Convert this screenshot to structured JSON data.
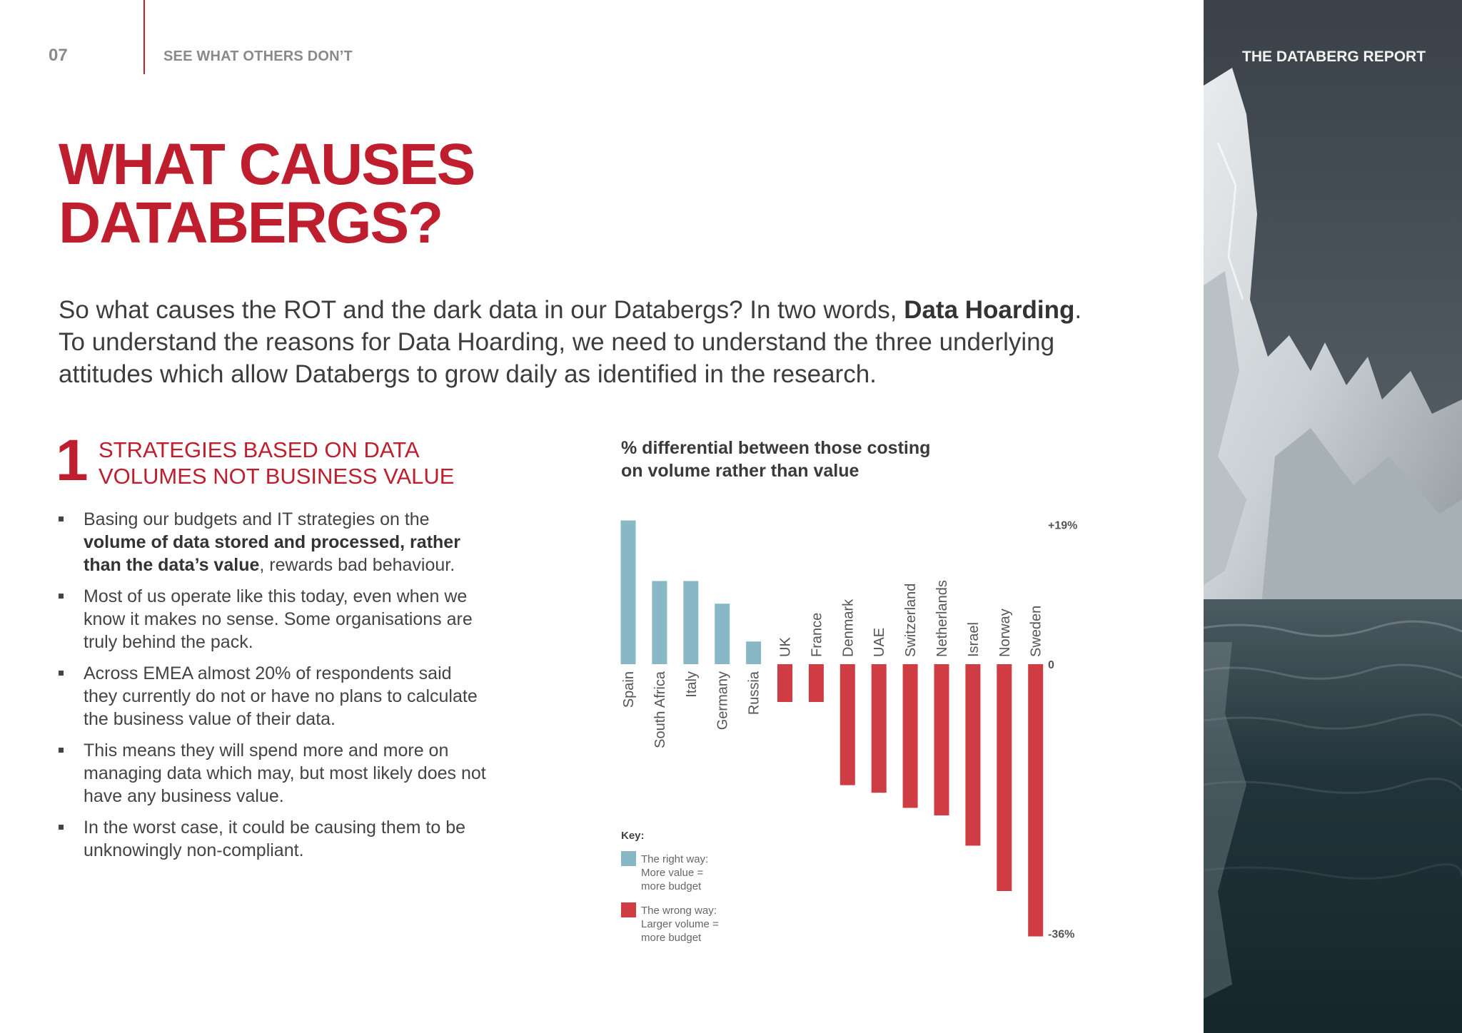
{
  "header": {
    "page_number": "07",
    "section_label": "SEE WHAT OTHERS DON’T",
    "report_title": "THE DATABERG REPORT"
  },
  "title": {
    "line1": "WHAT CAUSES",
    "line2": "DATABERGS?"
  },
  "intro": {
    "line1_before": "So what causes the ROT and the dark data in our Databergs? In two words, ",
    "line1_bold": "Data Hoarding",
    "line1_after": ".",
    "rest": "To understand the reasons for Data Hoarding, we need to understand the three underlying attitudes which allow Databergs to grow daily as identified in the research."
  },
  "section": {
    "number": "1",
    "heading_line1": "STRATEGIES BASED ON DATA",
    "heading_line2": "VOLUMES NOT BUSINESS VALUE",
    "bullet1_before": "Basing our budgets and IT strategies on the ",
    "bullet1_bold": "volume of data stored and processed, rather than the data’s value",
    "bullet1_after": ", rewards bad behaviour.",
    "bullet2": "Most of us operate like this today, even when we know it makes no sense. Some organisations are truly behind the pack.",
    "bullet3": "Across EMEA almost 20% of respondents said they currently do not or have no plans to calculate the business value of their data.",
    "bullet4": "This means they will spend more and more on managing data which may, but most likely does not have any business value.",
    "bullet5": "In the worst case, it could be causing them to be unknowingly non-compliant."
  },
  "chart": {
    "title_line1": "% differential between those costing",
    "title_line2": "on volume rather than value",
    "key_label": "Key:",
    "key_right_line1": "The right way:",
    "key_right_line2": "More value =",
    "key_right_line3": "more budget",
    "key_wrong_line1": "The wrong way:",
    "key_wrong_line2": "Larger volume =",
    "key_wrong_line3": "more budget"
  },
  "chart_data": {
    "type": "bar",
    "title": "% differential between those costing on volume rather than value",
    "categories": [
      "Spain",
      "South Africa",
      "Italy",
      "Germany",
      "Russia",
      "UK",
      "France",
      "Denmark",
      "UAE",
      "Switzerland",
      "Netherlands",
      "Israel",
      "Norway",
      "Sweden"
    ],
    "values": [
      19,
      11,
      11,
      8,
      3,
      -5,
      -5,
      -16,
      -17,
      -19,
      -20,
      -24,
      -30,
      -36
    ],
    "ylim": [
      -36,
      19
    ],
    "axis_labels": {
      "top": "+19%",
      "zero": "0",
      "bottom": "-36%"
    },
    "colors": {
      "positive": "#88b8c6",
      "negative": "#cf3c43"
    },
    "legend": [
      "The right way: More value = more budget",
      "The wrong way: Larger volume = more budget"
    ],
    "legend_position": "bottom-left",
    "grid": false
  }
}
